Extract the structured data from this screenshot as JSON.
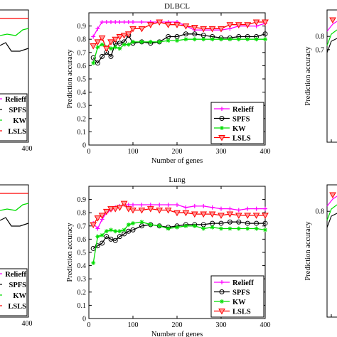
{
  "chart_data": [
    {
      "type": "line",
      "title": "DLBCL",
      "xlabel": "Number of genes",
      "ylabel": "Prediction accuracy",
      "xlim": [
        0,
        400
      ],
      "ylim": [
        0,
        1
      ],
      "xticks": [
        "0",
        "100",
        "200",
        "300",
        "400"
      ],
      "yticks": [
        "0",
        "0.1",
        "0.2",
        "0.3",
        "0.4",
        "0.5",
        "0.6",
        "0.7",
        "0.8",
        "0.9"
      ],
      "legend_position": "bottom-right",
      "series": [
        {
          "name": "Relieff",
          "color": "#ff00ff",
          "marker": "plus",
          "x": [
            10,
            20,
            30,
            40,
            50,
            60,
            70,
            80,
            90,
            100,
            120,
            140,
            160,
            180,
            200,
            220,
            240,
            260,
            280,
            300,
            320,
            340,
            360,
            380,
            400
          ],
          "y": [
            0.82,
            0.88,
            0.93,
            0.93,
            0.93,
            0.93,
            0.93,
            0.93,
            0.93,
            0.93,
            0.93,
            0.93,
            0.93,
            0.93,
            0.93,
            0.9,
            0.87,
            0.87,
            0.87,
            0.87,
            0.88,
            0.9,
            0.9,
            0.9,
            0.92
          ]
        },
        {
          "name": "SPFS",
          "color": "#000000",
          "marker": "circle",
          "x": [
            10,
            20,
            30,
            40,
            50,
            60,
            70,
            80,
            90,
            100,
            120,
            140,
            160,
            180,
            200,
            220,
            240,
            260,
            280,
            300,
            320,
            340,
            360,
            380,
            400
          ],
          "y": [
            0.66,
            0.62,
            0.67,
            0.7,
            0.67,
            0.77,
            0.77,
            0.78,
            0.83,
            0.77,
            0.78,
            0.77,
            0.78,
            0.82,
            0.82,
            0.84,
            0.84,
            0.83,
            0.82,
            0.81,
            0.81,
            0.82,
            0.82,
            0.82,
            0.84
          ]
        },
        {
          "name": "KW",
          "color": "#00dd00",
          "marker": "star",
          "x": [
            10,
            20,
            30,
            40,
            50,
            60,
            70,
            80,
            90,
            100,
            120,
            140,
            160,
            180,
            200,
            220,
            240,
            260,
            280,
            300,
            320,
            340,
            360,
            380,
            400
          ],
          "y": [
            0.62,
            0.74,
            0.76,
            0.74,
            0.73,
            0.74,
            0.73,
            0.76,
            0.76,
            0.78,
            0.78,
            0.78,
            0.78,
            0.79,
            0.79,
            0.8,
            0.8,
            0.8,
            0.8,
            0.8,
            0.8,
            0.8,
            0.8,
            0.8,
            0.8
          ]
        },
        {
          "name": "LSLS",
          "color": "#ff0000",
          "marker": "triangle-down",
          "x": [
            10,
            20,
            30,
            40,
            50,
            60,
            70,
            80,
            90,
            100,
            120,
            140,
            160,
            180,
            200,
            220,
            240,
            260,
            280,
            300,
            320,
            340,
            360,
            380,
            400
          ],
          "y": [
            0.75,
            0.78,
            0.81,
            0.73,
            0.78,
            0.8,
            0.82,
            0.83,
            0.84,
            0.88,
            0.88,
            0.91,
            0.93,
            0.91,
            0.91,
            0.9,
            0.89,
            0.88,
            0.88,
            0.88,
            0.91,
            0.91,
            0.91,
            0.93,
            0.93
          ]
        }
      ]
    },
    {
      "type": "line",
      "title": "Lung",
      "xlabel": "Number of genes",
      "ylabel": "Prediction accuracy",
      "xlim": [
        0,
        400
      ],
      "ylim": [
        0,
        1
      ],
      "xticks": [
        "0",
        "100",
        "200",
        "300",
        "400"
      ],
      "yticks": [
        "0",
        "0.1",
        "0.2",
        "0.3",
        "0.4",
        "0.5",
        "0.6",
        "0.7",
        "0.8",
        "0.9"
      ],
      "legend_position": "bottom-right",
      "series": [
        {
          "name": "Relieff",
          "color": "#ff00ff",
          "marker": "plus",
          "x": [
            10,
            20,
            30,
            40,
            50,
            60,
            70,
            80,
            90,
            100,
            120,
            140,
            160,
            180,
            200,
            220,
            240,
            260,
            280,
            300,
            320,
            340,
            360,
            380,
            400
          ],
          "y": [
            0.72,
            0.68,
            0.75,
            0.8,
            0.82,
            0.84,
            0.85,
            0.86,
            0.86,
            0.86,
            0.86,
            0.86,
            0.86,
            0.86,
            0.86,
            0.84,
            0.85,
            0.85,
            0.84,
            0.83,
            0.83,
            0.82,
            0.83,
            0.83,
            0.83
          ]
        },
        {
          "name": "SPFS",
          "color": "#000000",
          "marker": "circle",
          "x": [
            10,
            20,
            30,
            40,
            50,
            60,
            70,
            80,
            90,
            100,
            120,
            140,
            160,
            180,
            200,
            220,
            240,
            260,
            280,
            300,
            320,
            340,
            360,
            380,
            400
          ],
          "y": [
            0.53,
            0.55,
            0.57,
            0.62,
            0.6,
            0.59,
            0.62,
            0.64,
            0.66,
            0.67,
            0.7,
            0.71,
            0.7,
            0.69,
            0.7,
            0.71,
            0.71,
            0.71,
            0.72,
            0.72,
            0.73,
            0.73,
            0.72,
            0.72,
            0.72
          ]
        },
        {
          "name": "KW",
          "color": "#00dd00",
          "marker": "star",
          "x": [
            10,
            20,
            30,
            40,
            50,
            60,
            70,
            80,
            90,
            100,
            120,
            140,
            160,
            180,
            200,
            220,
            240,
            260,
            280,
            300,
            320,
            340,
            360,
            380,
            400
          ],
          "y": [
            0.42,
            0.62,
            0.63,
            0.66,
            0.67,
            0.66,
            0.66,
            0.67,
            0.71,
            0.72,
            0.73,
            0.71,
            0.7,
            0.68,
            0.69,
            0.7,
            0.7,
            0.68,
            0.69,
            0.68,
            0.68,
            0.68,
            0.68,
            0.68,
            0.67
          ]
        },
        {
          "name": "LSLS",
          "color": "#ff0000",
          "marker": "triangle-down",
          "x": [
            10,
            20,
            30,
            40,
            50,
            60,
            70,
            80,
            90,
            100,
            120,
            140,
            160,
            180,
            200,
            220,
            240,
            260,
            280,
            300,
            320,
            340,
            360,
            380,
            400
          ],
          "y": [
            0.71,
            0.76,
            0.78,
            0.81,
            0.83,
            0.83,
            0.84,
            0.87,
            0.83,
            0.82,
            0.82,
            0.83,
            0.82,
            0.82,
            0.8,
            0.8,
            0.79,
            0.79,
            0.79,
            0.78,
            0.79,
            0.78,
            0.78,
            0.78,
            0.78
          ]
        }
      ]
    }
  ],
  "partial_left": {
    "legend": [
      "Relieff",
      "SPFS",
      "KW",
      "LSLS"
    ],
    "xtick": "400"
  },
  "partial_right": {
    "ylabel": "Prediction accuracy",
    "yticks_top": [
      "0.8",
      "0.7"
    ]
  }
}
